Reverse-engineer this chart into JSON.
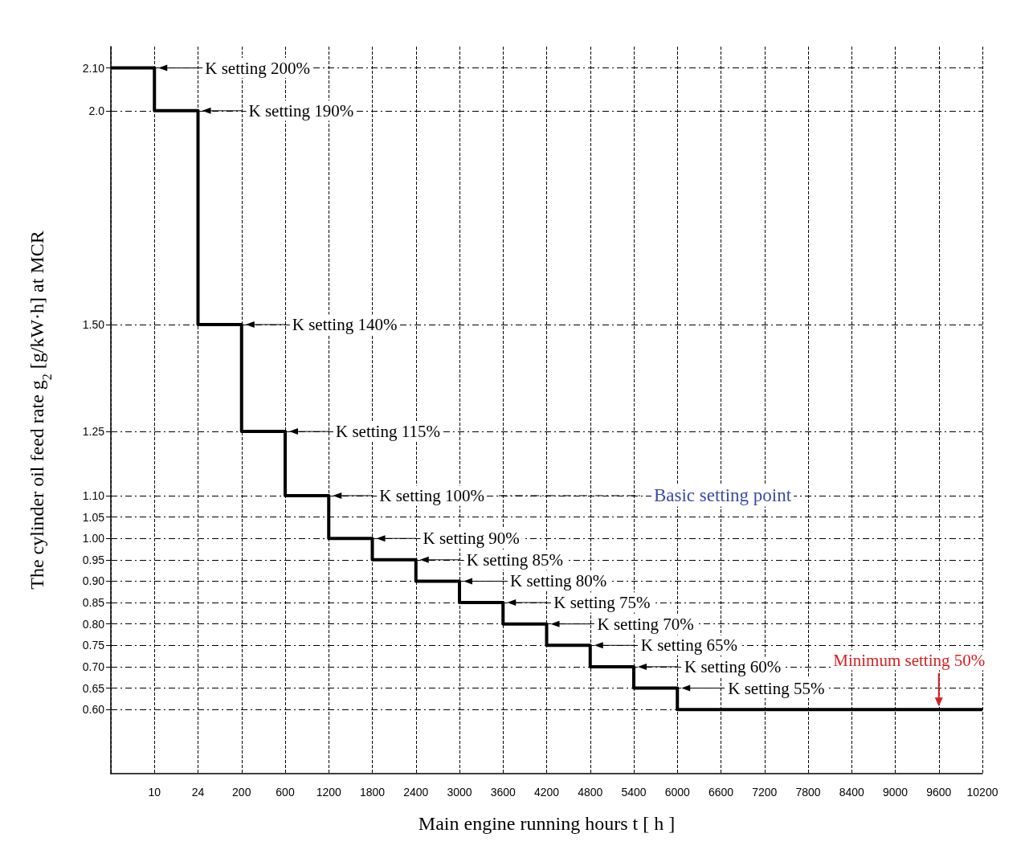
{
  "chart_data": {
    "type": "step",
    "xlabel": "Main engine running hours t [ h ]",
    "ylabel": "The cylinder oil feed rate g$_{2}$ [g/kW·h] at MCR",
    "categories": [
      null,
      "10",
      "24",
      "200",
      "600",
      "1200",
      "1800",
      "2400",
      "3000",
      "3600",
      "4200",
      "4800",
      "5400",
      "6000",
      "6600",
      "7200",
      "7800",
      "8400",
      "9000",
      "9600",
      "10200"
    ],
    "series": [
      {
        "color": "#000000",
        "values": [
          2.1,
          2.0,
          1.5,
          1.25,
          1.1,
          1.0,
          0.95,
          0.9,
          0.85,
          0.8,
          0.75,
          0.7,
          0.65,
          0.6,
          0.6,
          0.6,
          0.6,
          0.6,
          0.6,
          0.6,
          0.6
        ]
      }
    ],
    "ylim": [
      0.45,
      2.15
    ],
    "yticks": [
      {
        "value": 0.6,
        "label": "0.60"
      },
      0.65,
      {
        "value": 0.7,
        "label": "0.70"
      },
      0.75,
      {
        "value": 0.8,
        "label": "0.80"
      },
      0.85,
      {
        "value": 0.9,
        "label": "0.90"
      },
      0.95,
      {
        "value": 1.0,
        "label": "1.00"
      },
      1.05,
      {
        "value": 1.1,
        "label": "1.10"
      },
      1.25,
      {
        "value": 1.5,
        "label": "1.50"
      },
      {
        "value": 2.0,
        "label": "2.0"
      },
      {
        "value": 2.1,
        "label": "2.10"
      }
    ],
    "grid": true,
    "line_style": "solid",
    "annotations": [
      {
        "text": "K setting 200%",
        "x": "10",
        "y": 2.1
      },
      {
        "text": "K setting 190%",
        "x": "24",
        "y": 2.0
      },
      {
        "text": "K setting 140%",
        "x": "200",
        "y": 1.5
      },
      {
        "text": "K setting 115%",
        "x": "600",
        "y": 1.25
      },
      {
        "text": "K setting 100%",
        "x": "1200",
        "y": 1.1
      },
      "Basic setting point",
      {
        "text": "K setting 90%",
        "x": "1800",
        "y": 1.0
      },
      {
        "text": "K setting 85%",
        "x": "2400",
        "y": 0.95
      },
      {
        "text": "K setting 80%",
        "x": "3000",
        "y": 0.9
      },
      {
        "text": "K setting 75%",
        "x": "3600",
        "y": 0.85
      },
      {
        "text": "K setting 70%",
        "x": "4200",
        "y": 0.8
      },
      {
        "text": "K setting 65%",
        "x": "4800",
        "y": 0.75
      },
      {
        "text": "K setting 60%",
        "x": "5400",
        "y": 0.7
      },
      {
        "text": "K setting 55%",
        "x": "6000",
        "y": 0.65
      },
      {
        "text": "Minimum setting 50%",
        "x": "9600",
        "y": 0.6
      }
    ]
  }
}
